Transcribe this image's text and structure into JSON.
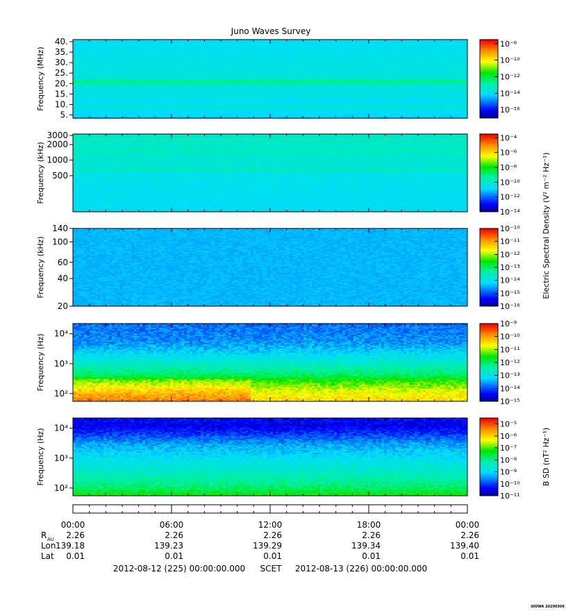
{
  "title": "Juno Waves Survey",
  "watermark": "UIOWA 20200306",
  "colorbar_labels": {
    "electric": "Electric Spectral Density (V² m⁻² Hz⁻¹)",
    "magnetic": "B SD (nT² Hz⁻¹)"
  },
  "chart_data": [
    {
      "type": "heatmap",
      "ylabel": "Frequency (MHz)",
      "yscale": "linear",
      "ylim": [
        3.5,
        41
      ],
      "yticks": [
        {
          "v": 40,
          "t": "40."
        },
        {
          "v": 35,
          "t": "35."
        },
        {
          "v": 30,
          "t": "30."
        },
        {
          "v": 25,
          "t": "25."
        },
        {
          "v": 20,
          "t": "20."
        },
        {
          "v": 15,
          "t": "15."
        },
        {
          "v": 10,
          "t": "10."
        },
        {
          "v": 5,
          "t": "5."
        }
      ],
      "colorbar": {
        "scale": "log",
        "min_exp": -17,
        "max_exp": -7.5,
        "ticks": [
          {
            "exp": -8,
            "t": "10⁻⁸"
          },
          {
            "exp": -10,
            "t": "10⁻¹⁰"
          },
          {
            "exp": -12,
            "t": "10⁻¹²"
          },
          {
            "exp": -14,
            "t": "10⁻¹⁴"
          },
          {
            "exp": -16,
            "t": "10⁻¹⁶"
          }
        ]
      },
      "profile": [
        {
          "y": 3.5,
          "exp": -14.2
        },
        {
          "y": 8.0,
          "exp": -14.0
        },
        {
          "y": 9.0,
          "exp": -13.2
        },
        {
          "y": 10.0,
          "exp": -14.0
        },
        {
          "y": 19.5,
          "exp": -13.6
        },
        {
          "y": 21.0,
          "exp": -12.2
        },
        {
          "y": 22.5,
          "exp": -13.6
        },
        {
          "y": 41,
          "exp": -14.0
        }
      ],
      "noise": 0.15
    },
    {
      "type": "heatmap",
      "ylabel": "Frequency (kHz)",
      "yscale": "log",
      "ylim": [
        100,
        3200
      ],
      "yticks": [
        {
          "v": 3000,
          "t": "3000"
        },
        {
          "v": 2000,
          "t": "2000"
        },
        {
          "v": 1000,
          "t": "1000"
        },
        {
          "v": 500,
          "t": "500"
        }
      ],
      "colorbar": {
        "scale": "log",
        "min_exp": -14,
        "max_exp": -3.5,
        "ticks": [
          {
            "exp": -4,
            "t": "10⁻⁴"
          },
          {
            "exp": -6,
            "t": "10⁻⁶"
          },
          {
            "exp": -8,
            "t": "10⁻⁸"
          },
          {
            "exp": -10,
            "t": "10⁻¹⁰"
          },
          {
            "exp": -12,
            "t": "10⁻¹²"
          },
          {
            "exp": -14,
            "t": "10⁻¹⁴"
          }
        ]
      },
      "profile": [
        {
          "y": 100,
          "exp": -10.7
        },
        {
          "y": 550,
          "exp": -10.5
        },
        {
          "y": 650,
          "exp": -9.8
        },
        {
          "y": 800,
          "exp": -10.2
        },
        {
          "y": 1350,
          "exp": -10.0
        },
        {
          "y": 1600,
          "exp": -9.6
        },
        {
          "y": 1900,
          "exp": -10.1
        },
        {
          "y": 2200,
          "exp": -9.8
        },
        {
          "y": 3200,
          "exp": -10.0
        }
      ],
      "noise": 0.25
    },
    {
      "type": "heatmap",
      "ylabel": "Frequency (kHz)",
      "yscale": "log",
      "ylim": [
        20,
        140
      ],
      "yticks": [
        {
          "v": 140,
          "t": "140"
        },
        {
          "v": 100,
          "t": "100"
        },
        {
          "v": 60,
          "t": "60"
        },
        {
          "v": 40,
          "t": "40"
        },
        {
          "v": 20,
          "t": "20"
        }
      ],
      "colorbar": {
        "scale": "log",
        "min_exp": -16,
        "max_exp": -10,
        "ticks": [
          {
            "exp": -10,
            "t": "10⁻¹⁰"
          },
          {
            "exp": -11,
            "t": "10⁻¹¹"
          },
          {
            "exp": -12,
            "t": "10⁻¹²"
          },
          {
            "exp": -13,
            "t": "10⁻¹³"
          },
          {
            "exp": -14,
            "t": "10⁻¹⁴"
          },
          {
            "exp": -15,
            "t": "10⁻¹⁵"
          },
          {
            "exp": -16,
            "t": "10⁻¹⁶"
          }
        ]
      },
      "profile": [
        {
          "y": 20,
          "exp": -14.4
        },
        {
          "y": 140,
          "exp": -14.4
        }
      ],
      "noise": 0.12
    },
    {
      "type": "heatmap",
      "ylabel": "Frequency (Hz)",
      "yscale": "log",
      "ylim": [
        55,
        22000
      ],
      "yticks": [
        {
          "v": 10000,
          "t": "10⁴"
        },
        {
          "v": 1000,
          "t": "10³"
        },
        {
          "v": 100,
          "t": "10²"
        }
      ],
      "colorbar": {
        "scale": "log",
        "min_exp": -15,
        "max_exp": -9,
        "ticks": [
          {
            "exp": -9,
            "t": "10⁻⁹"
          },
          {
            "exp": -10,
            "t": "10⁻¹⁰"
          },
          {
            "exp": -11,
            "t": "10⁻¹¹"
          },
          {
            "exp": -12,
            "t": "10⁻¹²"
          },
          {
            "exp": -13,
            "t": "10⁻¹³"
          },
          {
            "exp": -14,
            "t": "10⁻¹⁴"
          },
          {
            "exp": -15,
            "t": "10⁻¹⁵"
          }
        ]
      },
      "profile": [
        {
          "y": 55,
          "exp": -10.4
        },
        {
          "y": 90,
          "exp": -10.6
        },
        {
          "y": 140,
          "exp": -10.9
        },
        {
          "y": 250,
          "exp": -11.4
        },
        {
          "y": 450,
          "exp": -12.1
        },
        {
          "y": 900,
          "exp": -12.6
        },
        {
          "y": 2000,
          "exp": -13.1
        },
        {
          "y": 5000,
          "exp": -13.6
        },
        {
          "y": 22000,
          "exp": -13.8
        }
      ],
      "enhancement": {
        "x_start": 0.0,
        "x_end": 0.45,
        "y_max": 300,
        "delta_exp": 0.8
      },
      "noise": 0.3
    },
    {
      "type": "heatmap",
      "ylabel": "Frequency (Hz)",
      "yscale": "log",
      "ylim": [
        55,
        22000
      ],
      "yticks": [
        {
          "v": 10000,
          "t": "10⁴"
        },
        {
          "v": 1000,
          "t": "10³"
        },
        {
          "v": 100,
          "t": "10²"
        }
      ],
      "colorbar": {
        "scale": "log",
        "min_exp": -11,
        "max_exp": -4.5,
        "ticks": [
          {
            "exp": -5,
            "t": "10⁻⁵"
          },
          {
            "exp": -6,
            "t": "10⁻⁶"
          },
          {
            "exp": -7,
            "t": "10⁻⁷"
          },
          {
            "exp": -8,
            "t": "10⁻⁸"
          },
          {
            "exp": -9,
            "t": "10⁻⁹"
          },
          {
            "exp": -10,
            "t": "10⁻¹⁰"
          },
          {
            "exp": -11,
            "t": "10⁻¹¹"
          }
        ]
      },
      "profile": [
        {
          "y": 55,
          "exp": -7.2
        },
        {
          "y": 100,
          "exp": -7.8
        },
        {
          "y": 300,
          "exp": -8.4
        },
        {
          "y": 1000,
          "exp": -8.9
        },
        {
          "y": 3000,
          "exp": -9.4
        },
        {
          "y": 7000,
          "exp": -10.1
        },
        {
          "y": 12000,
          "exp": -10.5
        },
        {
          "y": 22000,
          "exp": -10.3
        }
      ],
      "noise": 0.3
    }
  ],
  "time_axis": {
    "ticks": [
      "00:00",
      "06:00",
      "12:00",
      "18:00",
      "00:00"
    ],
    "rows": [
      {
        "label": "R",
        "sub": "AU",
        "values": [
          "2.26",
          "2.26",
          "2.26",
          "2.26",
          "2.26"
        ]
      },
      {
        "label": "Lon",
        "sub": "",
        "values": [
          "139.18",
          "139.23",
          "139.29",
          "139.34",
          "139.40"
        ]
      },
      {
        "label": "Lat",
        "sub": "",
        "values": [
          "0.01",
          "0.01",
          "0.01",
          "0.01",
          "0.01"
        ]
      }
    ],
    "footer": {
      "start": "2012-08-12 (225) 00:00:00.000",
      "scet": "SCET",
      "end": "2012-08-13 (226) 00:00:00.000"
    }
  }
}
